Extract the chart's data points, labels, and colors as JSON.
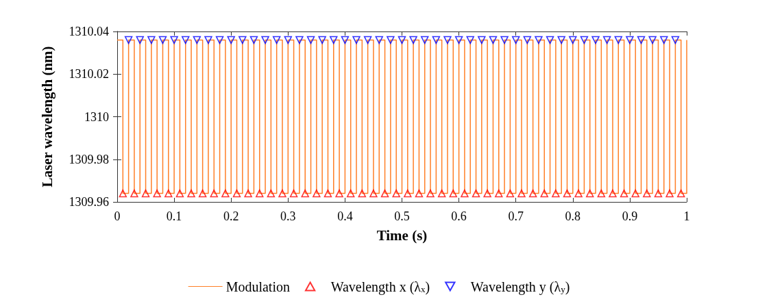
{
  "chart_data": {
    "type": "step",
    "xlabel": "Time (s)",
    "ylabel": "Laser wavelength (nm)",
    "xlim": [
      0,
      1
    ],
    "xticks": [
      0,
      0.1,
      0.2,
      0.3,
      0.4,
      0.5,
      0.6,
      0.7,
      0.8,
      0.9,
      1
    ],
    "ylim": [
      1309.96,
      1310.04
    ],
    "yticks": [
      1309.96,
      1309.98,
      1310,
      1310.02,
      1310.04
    ],
    "grid": false,
    "legend": "bottom",
    "series": [
      {
        "name": "Modulation",
        "color": "#ff7f27",
        "marker": "none",
        "x": [
          0,
          0.01,
          0.02,
          0.03,
          0.04,
          0.05,
          0.06,
          0.07,
          0.08,
          0.09,
          0.1,
          0.11,
          0.12,
          0.13,
          0.14,
          0.15,
          0.16,
          0.17,
          0.18,
          0.19,
          0.2,
          0.21,
          0.22,
          0.23,
          0.24,
          0.25,
          0.26,
          0.27,
          0.28,
          0.29,
          0.3,
          0.31,
          0.32,
          0.33,
          0.34,
          0.35,
          0.36,
          0.37,
          0.38,
          0.39,
          0.4,
          0.41,
          0.42,
          0.43,
          0.44,
          0.45,
          0.46,
          0.47,
          0.48,
          0.49,
          0.5,
          0.51,
          0.52,
          0.53,
          0.54,
          0.55,
          0.56,
          0.57,
          0.58,
          0.59,
          0.6,
          0.61,
          0.62,
          0.63,
          0.64,
          0.65,
          0.66,
          0.67,
          0.68,
          0.69,
          0.7,
          0.71,
          0.72,
          0.73,
          0.74,
          0.75,
          0.76,
          0.77,
          0.78,
          0.79,
          0.8,
          0.81,
          0.82,
          0.83,
          0.84,
          0.85,
          0.86,
          0.87,
          0.88,
          0.89,
          0.9,
          0.91,
          0.92,
          0.93,
          0.94,
          0.95,
          0.96,
          0.97,
          0.98,
          0.99,
          1
        ],
        "values": [
          1310.036,
          1309.964,
          1310.036,
          1309.964,
          1310.036,
          1309.964,
          1310.036,
          1309.964,
          1310.036,
          1309.964,
          1310.036,
          1309.964,
          1310.036,
          1309.964,
          1310.036,
          1309.964,
          1310.036,
          1309.964,
          1310.036,
          1309.964,
          1310.036,
          1309.964,
          1310.036,
          1309.964,
          1310.036,
          1309.964,
          1310.036,
          1309.964,
          1310.036,
          1309.964,
          1310.036,
          1309.964,
          1310.036,
          1309.964,
          1310.036,
          1309.964,
          1310.036,
          1309.964,
          1310.036,
          1309.964,
          1310.036,
          1309.964,
          1310.036,
          1309.964,
          1310.036,
          1309.964,
          1310.036,
          1309.964,
          1310.036,
          1309.964,
          1310.036,
          1309.964,
          1310.036,
          1309.964,
          1310.036,
          1309.964,
          1310.036,
          1309.964,
          1310.036,
          1309.964,
          1310.036,
          1309.964,
          1310.036,
          1309.964,
          1310.036,
          1309.964,
          1310.036,
          1309.964,
          1310.036,
          1309.964,
          1310.036,
          1309.964,
          1310.036,
          1309.964,
          1310.036,
          1309.964,
          1310.036,
          1309.964,
          1310.036,
          1309.964,
          1310.036,
          1309.964,
          1310.036,
          1309.964,
          1310.036,
          1309.964,
          1310.036,
          1309.964,
          1310.036,
          1309.964,
          1310.036,
          1309.964,
          1310.036,
          1309.964,
          1310.036,
          1309.964,
          1310.036,
          1309.964,
          1310.036,
          1309.964,
          1310.036
        ]
      },
      {
        "name": "Wavelength x (λ$_{x}$)",
        "type": "scatter",
        "color": "#ff0000",
        "marker": "triangle",
        "x": [
          0.01,
          0.03,
          0.05,
          0.07,
          0.09,
          0.11,
          0.13,
          0.15,
          0.17,
          0.19,
          0.21,
          0.23,
          0.25,
          0.27,
          0.29,
          0.31,
          0.33,
          0.35,
          0.37,
          0.39,
          0.41,
          0.43,
          0.45,
          0.47,
          0.49,
          0.51,
          0.53,
          0.55,
          0.57,
          0.59,
          0.61,
          0.63,
          0.65,
          0.67,
          0.69,
          0.71,
          0.73,
          0.75,
          0.77,
          0.79,
          0.81,
          0.83,
          0.85,
          0.87,
          0.89,
          0.91,
          0.93,
          0.95,
          0.97,
          0.99
        ],
        "values": [
          1309.964,
          1309.964,
          1309.964,
          1309.964,
          1309.964,
          1309.964,
          1309.964,
          1309.964,
          1309.964,
          1309.964,
          1309.964,
          1309.964,
          1309.964,
          1309.964,
          1309.964,
          1309.964,
          1309.964,
          1309.964,
          1309.964,
          1309.964,
          1309.964,
          1309.964,
          1309.964,
          1309.964,
          1309.964,
          1309.964,
          1309.964,
          1309.964,
          1309.964,
          1309.964,
          1309.964,
          1309.964,
          1309.964,
          1309.964,
          1309.964,
          1309.964,
          1309.964,
          1309.964,
          1309.964,
          1309.964,
          1309.964,
          1309.964,
          1309.964,
          1309.964,
          1309.964,
          1309.964,
          1309.964,
          1309.964,
          1309.964,
          1309.964
        ]
      },
      {
        "name": "Wavelength y (λ$_{y}$)",
        "type": "scatter",
        "color": "#0000ff",
        "marker": "triangle-down",
        "x": [
          0.02,
          0.04,
          0.06,
          0.08,
          0.1,
          0.12,
          0.14,
          0.16,
          0.18,
          0.2,
          0.22,
          0.24,
          0.26,
          0.28,
          0.3,
          0.32,
          0.34,
          0.36,
          0.38,
          0.4,
          0.42,
          0.44,
          0.46,
          0.48,
          0.5,
          0.52,
          0.54,
          0.56,
          0.58,
          0.6,
          0.62,
          0.64,
          0.66,
          0.68,
          0.7,
          0.72,
          0.74,
          0.76,
          0.78,
          0.8,
          0.82,
          0.84,
          0.86,
          0.88,
          0.9,
          0.92,
          0.94,
          0.96,
          0.98
        ],
        "values": [
          1310.036,
          1310.036,
          1310.036,
          1310.036,
          1310.036,
          1310.036,
          1310.036,
          1310.036,
          1310.036,
          1310.036,
          1310.036,
          1310.036,
          1310.036,
          1310.036,
          1310.036,
          1310.036,
          1310.036,
          1310.036,
          1310.036,
          1310.036,
          1310.036,
          1310.036,
          1310.036,
          1310.036,
          1310.036,
          1310.036,
          1310.036,
          1310.036,
          1310.036,
          1310.036,
          1310.036,
          1310.036,
          1310.036,
          1310.036,
          1310.036,
          1310.036,
          1310.036,
          1310.036,
          1310.036,
          1310.036,
          1310.036,
          1310.036,
          1310.036,
          1310.036,
          1310.036,
          1310.036,
          1310.036,
          1310.036,
          1310.036
        ]
      }
    ]
  }
}
